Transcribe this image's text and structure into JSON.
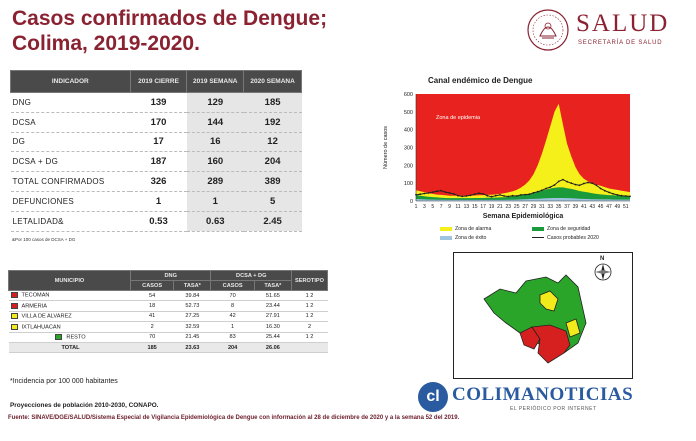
{
  "title": "Casos confirmados de Dengue; Colima, 2019-2020.",
  "logo": {
    "word": "SALUD",
    "sub": "SECRETARÍA DE SALUD"
  },
  "summary_table": {
    "headers": [
      "INDICADOR",
      "2019 CIERRE",
      "2019 SEMANA",
      "2020 SEMANA"
    ],
    "rows": [
      {
        "label": "DNG",
        "values": [
          "139",
          "129",
          "185"
        ]
      },
      {
        "label": "DCSA",
        "values": [
          "170",
          "144",
          "192"
        ]
      },
      {
        "label": "DG",
        "values": [
          "17",
          "16",
          "12"
        ]
      },
      {
        "label": "DCSA + DG",
        "values": [
          "187",
          "160",
          "204"
        ]
      },
      {
        "label": "TOTAL CONFIRMADOS",
        "values": [
          "326",
          "289",
          "389"
        ]
      },
      {
        "label": "DEFUNCIONES",
        "values": [
          "1",
          "1",
          "5"
        ]
      },
      {
        "label": "LETALIDAD&",
        "values": [
          "0.53",
          "0.63",
          "2.45"
        ]
      }
    ],
    "note": "&Por 100 casos de DCSA + DG"
  },
  "municipio_table": {
    "headers": {
      "municipio": "MUNICIPIO",
      "dng": "DNG",
      "dcsa": "DCSA + DG",
      "serotipo": "SEROTIPO",
      "casos": "CASOS",
      "tasa": "TASA*"
    },
    "rows": [
      {
        "name": "TECOMAN",
        "color": "#d62020",
        "dng_casos": "54",
        "dng_tasa": "39.84",
        "dcsa_casos": "70",
        "dcsa_tasa": "51.65",
        "serotipo": "1  2"
      },
      {
        "name": "ARMERIA",
        "color": "#d62020",
        "dng_casos": "18",
        "dng_tasa": "52.73",
        "dcsa_casos": "8",
        "dcsa_tasa": "23.44",
        "serotipo": "1  2"
      },
      {
        "name": "VILLA DE ALVAREZ",
        "color": "#f2ea1a",
        "dng_casos": "41",
        "dng_tasa": "27.25",
        "dcsa_casos": "42",
        "dcsa_tasa": "27.91",
        "serotipo": "1  2"
      },
      {
        "name": "IXTLAHUACAN",
        "color": "#f2ea1a",
        "dng_casos": "2",
        "dng_tasa": "32.59",
        "dcsa_casos": "1",
        "dcsa_tasa": "16.30",
        "serotipo": "2"
      },
      {
        "name": "RESTO",
        "color": "#2aa52a",
        "dng_casos": "70",
        "dng_tasa": "21.45",
        "dcsa_casos": "83",
        "dcsa_tasa": "25.44",
        "serotipo": "1  2"
      }
    ],
    "total": {
      "name": "TOTAL",
      "dng_casos": "185",
      "dng_tasa": "23.63",
      "dcsa_casos": "204",
      "dcsa_tasa": "26.06"
    }
  },
  "notes": {
    "incidencia": "*Incidencia por 100 000 habitantes",
    "proyecciones": "Proyecciones de población 2010-2030,  CONAPO.",
    "fuente": "Fuente: SINAVE/DGE/SALUD/Sistema Especial de Vigilancia Epidemiológica de Dengue con información al 28 de diciembre de 2020 y a la semana 52 del 2019."
  },
  "chart_data": {
    "type": "area",
    "title": "Canal endémico de Dengue",
    "xlabel": "Semana Epidemiológica",
    "ylabel": "Número de casos",
    "x": [
      1,
      2,
      3,
      4,
      5,
      6,
      7,
      8,
      9,
      10,
      11,
      12,
      13,
      14,
      15,
      16,
      17,
      18,
      19,
      20,
      21,
      22,
      23,
      24,
      25,
      26,
      27,
      28,
      29,
      30,
      31,
      32,
      33,
      34,
      35,
      36,
      37,
      38,
      39,
      40,
      41,
      42,
      43,
      44,
      45,
      46,
      47,
      48,
      49,
      50,
      51,
      52
    ],
    "xticks": [
      1,
      3,
      5,
      7,
      9,
      11,
      13,
      15,
      17,
      19,
      21,
      23,
      25,
      27,
      29,
      31,
      33,
      35,
      37,
      39,
      41,
      43,
      45,
      47,
      49,
      51
    ],
    "ylim": [
      0,
      600
    ],
    "yticks": [
      0,
      100,
      200,
      300,
      400,
      500,
      600
    ],
    "annotation": "Zona de epidemia",
    "colors": {
      "epidemia": "#e8221e",
      "alarma": "#f5f01a",
      "seguridad": "#1a9a3a",
      "exito": "#9fc4e0",
      "casos": "#222222"
    },
    "series": [
      {
        "name": "Zona de éxito",
        "values": [
          12,
          10,
          9,
          8,
          8,
          7,
          7,
          7,
          6,
          6,
          6,
          6,
          6,
          6,
          6,
          6,
          6,
          6,
          6,
          6,
          6,
          6,
          7,
          7,
          8,
          9,
          10,
          11,
          12,
          13,
          14,
          15,
          16,
          17,
          17,
          17,
          16,
          15,
          14,
          13,
          12,
          11,
          10,
          10,
          9,
          9,
          9,
          8,
          8,
          8,
          8,
          8
        ]
      },
      {
        "name": "Zona de seguridad",
        "values": [
          35,
          30,
          27,
          24,
          22,
          20,
          18,
          17,
          16,
          16,
          16,
          16,
          16,
          16,
          17,
          17,
          17,
          18,
          18,
          19,
          20,
          21,
          23,
          25,
          28,
          32,
          36,
          40,
          46,
          52,
          58,
          64,
          70,
          74,
          76,
          76,
          72,
          68,
          62,
          56,
          52,
          48,
          44,
          40,
          37,
          35,
          33,
          32,
          31,
          30,
          29,
          28
        ]
      },
      {
        "name": "Zona de alarma",
        "values": [
          60,
          55,
          50,
          44,
          40,
          36,
          34,
          32,
          30,
          29,
          29,
          29,
          29,
          30,
          31,
          32,
          33,
          34,
          35,
          37,
          40,
          44,
          48,
          54,
          62,
          75,
          92,
          115,
          150,
          200,
          265,
          340,
          420,
          500,
          545,
          430,
          320,
          250,
          190,
          150,
          125,
          110,
          100,
          92,
          85,
          78,
          70,
          66,
          62,
          58,
          54,
          50
        ]
      },
      {
        "name": "Casos probables 2020",
        "values": [
          35,
          38,
          42,
          45,
          50,
          55,
          58,
          50,
          45,
          40,
          30,
          26,
          28,
          32,
          38,
          44,
          40,
          30,
          24,
          30,
          34,
          28,
          25,
          30,
          28,
          34,
          36,
          38,
          46,
          52,
          60,
          70,
          78,
          90,
          110,
          120,
          108,
          100,
          92,
          88,
          98,
          104,
          100,
          88,
          70,
          58,
          48,
          40,
          34,
          30,
          28,
          26
        ]
      }
    ],
    "legend": [
      "Zona de alarma",
      "Zona de seguridad",
      "Zona de éxito",
      "Casos probables 2020"
    ]
  },
  "map": {
    "north_label": "N"
  },
  "watermark": {
    "icon_text": "cl",
    "name": "COLIMANOTICIAS",
    "tagline": "EL PERIÓDICO POR INTERNET"
  }
}
